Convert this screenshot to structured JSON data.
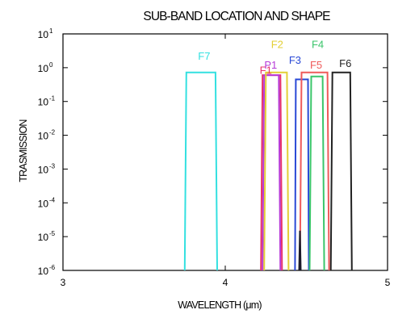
{
  "chart_data": {
    "type": "line",
    "title": "SUB-BAND LOCATION AND SHAPE",
    "xlabel": "WAVELENGTH (μm)",
    "ylabel": "TRASMISSION",
    "xlim": [
      3,
      5
    ],
    "ylim": [
      1e-06,
      10
    ],
    "yscale": "log",
    "x_ticks": [
      {
        "value": 3,
        "label": "3"
      },
      {
        "value": 4,
        "label": "4"
      },
      {
        "value": 5,
        "label": "5"
      }
    ],
    "y_ticks": [
      {
        "value": 10,
        "base": "10",
        "exp": "1"
      },
      {
        "value": 1,
        "base": "10",
        "exp": "0"
      },
      {
        "value": 0.1,
        "base": "10",
        "exp": "-1"
      },
      {
        "value": 0.01,
        "base": "10",
        "exp": "-2"
      },
      {
        "value": 0.001,
        "base": "10",
        "exp": "-3"
      },
      {
        "value": 0.0001,
        "base": "10",
        "exp": "-4"
      },
      {
        "value": 1e-05,
        "base": "10",
        "exp": "-5"
      },
      {
        "value": 1e-06,
        "base": "10",
        "exp": "-6"
      }
    ],
    "grid": false,
    "series": [
      {
        "name": "F7",
        "color": "#33e0e0",
        "label_x": 3.87,
        "label_y": 1.7,
        "x": [
          3.75,
          3.76,
          3.94,
          3.95
        ],
        "y": [
          1e-06,
          0.72,
          0.72,
          1e-06
        ]
      },
      {
        "name": "F1",
        "color": "#e8336a",
        "label_x": 4.25,
        "label_y": 0.65,
        "x": [
          4.22,
          4.23,
          4.34,
          4.35
        ],
        "y": [
          1e-06,
          0.6,
          0.6,
          1e-06
        ]
      },
      {
        "name": "P1",
        "color": "#b73bd8",
        "label_x": 4.28,
        "label_y": 0.95,
        "x": [
          4.23,
          4.24,
          4.33,
          4.34
        ],
        "y": [
          1e-06,
          0.6,
          0.6,
          1e-06
        ]
      },
      {
        "name": "F2",
        "color": "#e3cf35",
        "label_x": 4.32,
        "label_y": 3.8,
        "x": [
          4.24,
          4.25,
          4.38,
          4.39
        ],
        "y": [
          1e-06,
          0.72,
          0.72,
          1e-06
        ]
      },
      {
        "name": "F3",
        "color": "#2a49d6",
        "label_x": 4.43,
        "label_y": 1.3,
        "x": [
          4.43,
          4.435,
          4.51,
          4.515
        ],
        "y": [
          1e-06,
          0.45,
          0.45,
          1e-06
        ]
      },
      {
        "name": "F4",
        "color": "#3ac56a",
        "label_x": 4.57,
        "label_y": 3.8,
        "x": [
          4.52,
          4.53,
          4.6,
          4.61
        ],
        "y": [
          1e-06,
          0.55,
          0.55,
          1e-06
        ]
      },
      {
        "name": "F5",
        "color": "#ef5a5a",
        "label_x": 4.56,
        "label_y": 0.95,
        "x": [
          4.46,
          4.47,
          4.63,
          4.64
        ],
        "y": [
          1e-06,
          0.72,
          0.72,
          1e-06
        ]
      },
      {
        "name": "F6",
        "color": "#222222",
        "label_x": 4.74,
        "label_y": 1.05,
        "x": [
          4.65,
          4.66,
          4.77,
          4.78
        ],
        "y": [
          1e-06,
          0.72,
          0.72,
          1e-06
        ]
      },
      {
        "name": "",
        "color": "#1a1a2a",
        "x": [
          4.455,
          4.46,
          4.465
        ],
        "y": [
          1e-06,
          1.5e-05,
          1e-06
        ]
      }
    ]
  }
}
